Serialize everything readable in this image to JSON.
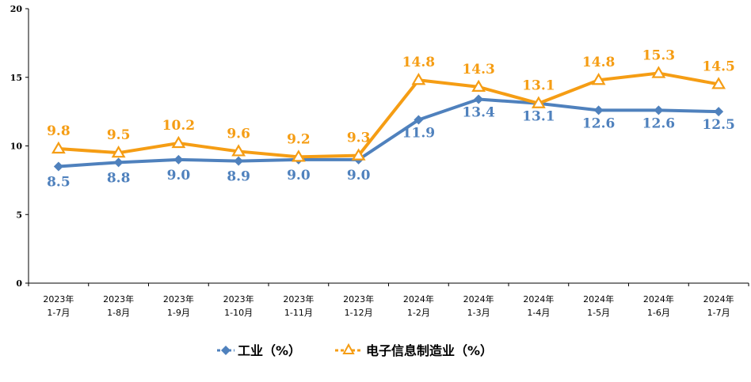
{
  "chart_data": {
    "type": "line",
    "title": "",
    "xlabel": "",
    "ylabel": "",
    "ylim": [
      0,
      20
    ],
    "yticks": [
      "0",
      "5",
      "10",
      "15",
      "20"
    ],
    "grid": false,
    "legend_position": "bottom",
    "categories": [
      [
        "2023年",
        "1-7月"
      ],
      [
        "2023年",
        "1-8月"
      ],
      [
        "2023年",
        "1-9月"
      ],
      [
        "2023年",
        "1-10月"
      ],
      [
        "2023年",
        "1-11月"
      ],
      [
        "2023年",
        "1-12月"
      ],
      [
        "2024年",
        "1-2月"
      ],
      [
        "2024年",
        "1-3月"
      ],
      [
        "2024年",
        "1-4月"
      ],
      [
        "2024年",
        "1-5月"
      ],
      [
        "2024年",
        "1-6月"
      ],
      [
        "2024年",
        "1-7月"
      ]
    ],
    "series": [
      {
        "name": "工业（%）",
        "color": "#4f81bd",
        "marker": "diamond",
        "values": [
          8.5,
          8.8,
          9.0,
          8.9,
          9.0,
          9.0,
          11.9,
          13.4,
          13.1,
          12.6,
          12.6,
          12.5
        ],
        "labels": [
          "8.5",
          "8.8",
          "9.0",
          "8.9",
          "9.0",
          "9.0",
          "11.9",
          "13.4",
          "13.1",
          "12.6",
          "12.6",
          "12.5"
        ]
      },
      {
        "name": "电子信息制造业（%）",
        "color": "#f59d14",
        "marker": "triangle",
        "values": [
          9.8,
          9.5,
          10.2,
          9.6,
          9.2,
          9.3,
          14.8,
          14.3,
          13.1,
          14.8,
          15.3,
          14.5
        ],
        "labels": [
          "9.8",
          "9.5",
          "10.2",
          "9.6",
          "9.2",
          "9.3",
          "14.8",
          "14.3",
          "13.1",
          "14.8",
          "15.3",
          "14.5"
        ]
      }
    ]
  }
}
